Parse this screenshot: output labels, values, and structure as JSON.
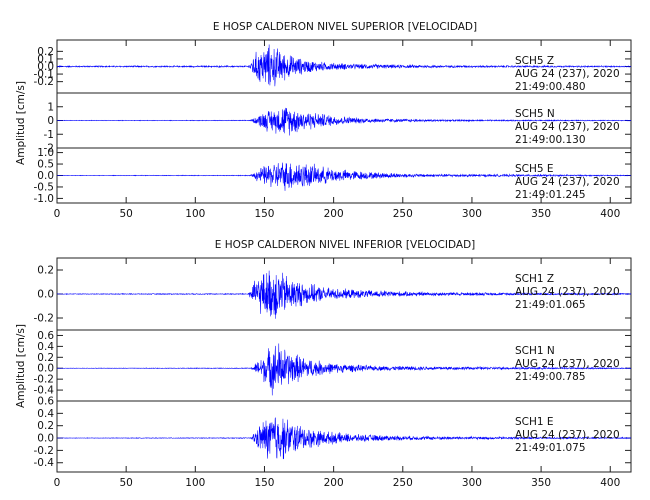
{
  "chart_data": [
    {
      "type": "line",
      "title": "E HOSP CALDERON NIVEL SUPERIOR [VELOCIDAD]",
      "ylabel": "Amplitud [cm/s]",
      "xlim": [
        0,
        415
      ],
      "xticks": [
        0,
        50,
        100,
        150,
        200,
        250,
        300,
        350,
        400
      ],
      "line_color": "#0000ff",
      "series": [
        {
          "name": "SCH5 Z",
          "station": "SCH5",
          "component": "Z",
          "date": "AUG 24 (237), 2020",
          "time": "21:49:00.480",
          "ylim": [
            -0.35,
            0.35
          ],
          "yticks": [
            0.2,
            0.1,
            0.0,
            -0.1,
            -0.2
          ],
          "ytick_labels": [
            "0.2",
            "0.1",
            "0.0",
            "-0.1",
            "-0.2"
          ],
          "envelope": [
            [
              0,
              0.01
            ],
            [
              138,
              0.012
            ],
            [
              140,
              0.06
            ],
            [
              143,
              0.2
            ],
            [
              146,
              0.25
            ],
            [
              150,
              0.3
            ],
            [
              154,
              0.33
            ],
            [
              158,
              0.3
            ],
            [
              163,
              0.22
            ],
            [
              170,
              0.16
            ],
            [
              180,
              0.1
            ],
            [
              195,
              0.06
            ],
            [
              215,
              0.04
            ],
            [
              250,
              0.025
            ],
            [
              300,
              0.015
            ],
            [
              415,
              0.01
            ]
          ]
        },
        {
          "name": "SCH5 N",
          "station": "SCH5",
          "component": "N",
          "date": "AUG 24 (237), 2020",
          "time": "21:49:00.130",
          "ylim": [
            -2.0,
            2.0
          ],
          "yticks": [
            1,
            0,
            -1,
            -2
          ],
          "ytick_labels": [
            "1",
            "0",
            "-1",
            "-2"
          ],
          "envelope": [
            [
              0,
              0.02
            ],
            [
              140,
              0.03
            ],
            [
              145,
              0.4
            ],
            [
              150,
              0.8
            ],
            [
              158,
              1.0
            ],
            [
              165,
              1.3
            ],
            [
              170,
              1.1
            ],
            [
              180,
              0.8
            ],
            [
              195,
              0.5
            ],
            [
              215,
              0.25
            ],
            [
              250,
              0.12
            ],
            [
              300,
              0.06
            ],
            [
              415,
              0.03
            ]
          ]
        },
        {
          "name": "SCH5 E",
          "station": "SCH5",
          "component": "E",
          "date": "AUG 24 (237), 2020",
          "time": "21:49:01.245",
          "ylim": [
            -1.2,
            1.2
          ],
          "yticks": [
            1.0,
            0.5,
            0.0,
            -0.5,
            -1.0
          ],
          "ytick_labels": [
            "1.0",
            "0.5",
            "0.0",
            "-0.5",
            "-1.0"
          ],
          "envelope": [
            [
              0,
              0.01
            ],
            [
              140,
              0.02
            ],
            [
              145,
              0.3
            ],
            [
              152,
              0.55
            ],
            [
              160,
              0.7
            ],
            [
              170,
              0.75
            ],
            [
              178,
              0.65
            ],
            [
              190,
              0.45
            ],
            [
              205,
              0.3
            ],
            [
              225,
              0.18
            ],
            [
              260,
              0.08
            ],
            [
              415,
              0.02
            ]
          ]
        }
      ]
    },
    {
      "type": "line",
      "title": "E HOSP CALDERON NIVEL INFERIOR [VELOCIDAD]",
      "ylabel": "Amplitud [cm/s]",
      "xlim": [
        0,
        415
      ],
      "xticks": [
        0,
        50,
        100,
        150,
        200,
        250,
        300,
        350,
        400
      ],
      "line_color": "#0000ff",
      "series": [
        {
          "name": "SCH1 Z",
          "station": "SCH1",
          "component": "Z",
          "date": "AUG 24 (237), 2020",
          "time": "21:49:01.065",
          "ylim": [
            -0.3,
            0.3
          ],
          "yticks": [
            0.2,
            0.0,
            -0.2
          ],
          "ytick_labels": [
            "0.2",
            "0.0",
            "-0.2"
          ],
          "envelope": [
            [
              0,
              0.003
            ],
            [
              138,
              0.005
            ],
            [
              141,
              0.08
            ],
            [
              146,
              0.18
            ],
            [
              152,
              0.22
            ],
            [
              158,
              0.27
            ],
            [
              163,
              0.2
            ],
            [
              170,
              0.15
            ],
            [
              180,
              0.1
            ],
            [
              195,
              0.06
            ],
            [
              215,
              0.04
            ],
            [
              260,
              0.02
            ],
            [
              320,
              0.012
            ],
            [
              415,
              0.006
            ]
          ]
        },
        {
          "name": "SCH1 N",
          "station": "SCH1",
          "component": "N",
          "date": "AUG 24 (237), 2020",
          "time": "21:49:00.785",
          "ylim": [
            -0.6,
            0.7
          ],
          "yticks": [
            0.6,
            0.4,
            0.2,
            0.0,
            -0.2,
            -0.4
          ],
          "ytick_labels": [
            "0.6",
            "0.4",
            "0.2",
            "0.0",
            "-0.2",
            "-0.4"
          ],
          "envelope": [
            [
              0,
              0.004
            ],
            [
              140,
              0.008
            ],
            [
              144,
              0.12
            ],
            [
              150,
              0.3
            ],
            [
              155,
              0.5
            ],
            [
              160,
              0.55
            ],
            [
              165,
              0.4
            ],
            [
              172,
              0.3
            ],
            [
              185,
              0.18
            ],
            [
              200,
              0.1
            ],
            [
              230,
              0.05
            ],
            [
              300,
              0.03
            ],
            [
              415,
              0.01
            ]
          ]
        },
        {
          "name": "SCH1 E",
          "station": "SCH1",
          "component": "E",
          "date": "AUG 24 (237), 2020",
          "time": "21:49:01.075",
          "ylim": [
            -0.55,
            0.6
          ],
          "yticks": [
            0.6,
            0.4,
            0.2,
            0.0,
            -0.2,
            -0.4
          ],
          "ytick_labels": [
            "0.6",
            "0.4",
            "0.2",
            "0.0",
            "-0.2",
            "-0.4"
          ],
          "envelope": [
            [
              0,
              0.004
            ],
            [
              140,
              0.008
            ],
            [
              143,
              0.12
            ],
            [
              150,
              0.35
            ],
            [
              155,
              0.45
            ],
            [
              158,
              0.5
            ],
            [
              163,
              0.4
            ],
            [
              170,
              0.3
            ],
            [
              180,
              0.2
            ],
            [
              195,
              0.12
            ],
            [
              215,
              0.07
            ],
            [
              250,
              0.04
            ],
            [
              320,
              0.02
            ],
            [
              415,
              0.01
            ]
          ]
        }
      ]
    }
  ]
}
